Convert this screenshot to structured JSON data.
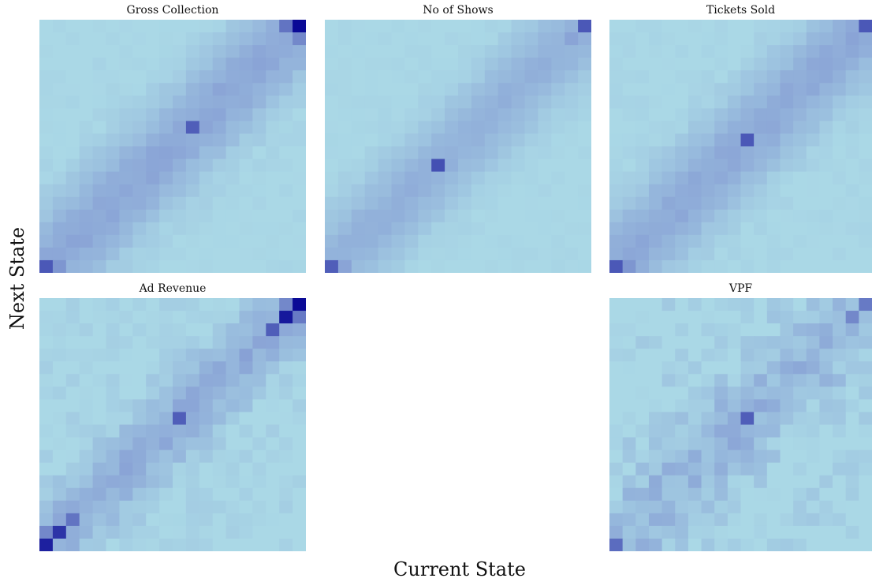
{
  "figure": {
    "xlabel": "Current State",
    "ylabel": "Next State"
  },
  "colors": {
    "low": "#aad8e6",
    "mid": "#8aa4d6",
    "high": "#0a0a96"
  },
  "chart_data": [
    {
      "type": "heatmap",
      "title": "Gross Collection",
      "grid": 20,
      "band_center_offset": 0,
      "band_width": 3.2,
      "band_strength": 0.42,
      "noise": 0.04,
      "hotspots": [
        {
          "col": 19,
          "row": 0,
          "value": 1.0
        },
        {
          "col": 18,
          "row": 0,
          "value": 0.62
        },
        {
          "col": 19,
          "row": 1,
          "value": 0.55
        },
        {
          "col": 11,
          "row": 8,
          "value": 0.7
        },
        {
          "col": 0,
          "row": 19,
          "value": 0.72
        },
        {
          "col": 1,
          "row": 19,
          "value": 0.5
        }
      ]
    },
    {
      "type": "heatmap",
      "title": "No of Shows",
      "grid": 20,
      "band_center_offset": 0,
      "band_width": 3.0,
      "band_strength": 0.34,
      "noise": 0.03,
      "hotspots": [
        {
          "col": 19,
          "row": 0,
          "value": 0.72
        },
        {
          "col": 18,
          "row": 1,
          "value": 0.45
        },
        {
          "col": 8,
          "row": 11,
          "value": 0.75
        },
        {
          "col": 0,
          "row": 19,
          "value": 0.7
        },
        {
          "col": 1,
          "row": 19,
          "value": 0.45
        }
      ]
    },
    {
      "type": "heatmap",
      "title": "Tickets Sold",
      "grid": 20,
      "band_center_offset": 0,
      "band_width": 3.2,
      "band_strength": 0.4,
      "noise": 0.04,
      "hotspots": [
        {
          "col": 19,
          "row": 0,
          "value": 0.72
        },
        {
          "col": 18,
          "row": 1,
          "value": 0.45
        },
        {
          "col": 10,
          "row": 9,
          "value": 0.72
        },
        {
          "col": 0,
          "row": 19,
          "value": 0.72
        },
        {
          "col": 1,
          "row": 19,
          "value": 0.5
        }
      ]
    },
    {
      "type": "heatmap",
      "title": "Ad Revenue",
      "grid": 20,
      "band_center_offset": 0,
      "band_width": 2.6,
      "band_strength": 0.38,
      "noise": 0.09,
      "hotspots": [
        {
          "col": 19,
          "row": 0,
          "value": 1.0
        },
        {
          "col": 18,
          "row": 1,
          "value": 0.95
        },
        {
          "col": 19,
          "row": 1,
          "value": 0.6
        },
        {
          "col": 18,
          "row": 0,
          "value": 0.55
        },
        {
          "col": 17,
          "row": 2,
          "value": 0.7
        },
        {
          "col": 10,
          "row": 9,
          "value": 0.7
        },
        {
          "col": 0,
          "row": 19,
          "value": 0.92
        },
        {
          "col": 1,
          "row": 18,
          "value": 0.85
        },
        {
          "col": 2,
          "row": 17,
          "value": 0.62
        },
        {
          "col": 0,
          "row": 18,
          "value": 0.55
        }
      ]
    },
    {
      "type": "heatmap",
      "title": "VPF",
      "grid": 20,
      "band_center_offset": 0,
      "band_width": 3.4,
      "band_strength": 0.3,
      "noise": 0.14,
      "hotspots": [
        {
          "col": 19,
          "row": 0,
          "value": 0.6
        },
        {
          "col": 18,
          "row": 1,
          "value": 0.55
        },
        {
          "col": 10,
          "row": 9,
          "value": 0.7
        },
        {
          "col": 0,
          "row": 19,
          "value": 0.65
        }
      ]
    }
  ]
}
